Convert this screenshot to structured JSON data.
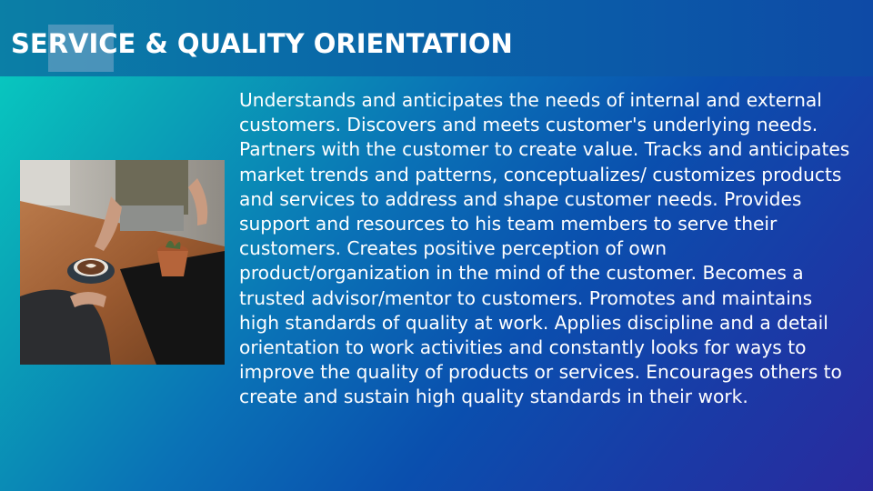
{
  "slide": {
    "title": "SERVICE & QUALITY ORIENTATION",
    "body": "Understands and anticipates the needs of internal and external customers. Discovers and meets customer's underlying needs. Partners with the customer to create value. Tracks and anticipates market trends and patterns, conceptualizes/ customizes products and services to address and shape customer needs. Provides support and resources to his team members to serve their customers. Creates positive perception of own product/organization in the mind of the customer. Becomes a trusted advisor/mentor to customers. Promotes and maintains high standards of quality at work. Applies discipline and a detail orientation to work activities and constantly looks for ways to improve the quality of products or services. Encourages others to create and sustain high quality standards in their work."
  },
  "colors": {
    "gradient_start": "#07d1c2",
    "gradient_end": "#2a2a9e",
    "title_bar": "#0a68a8",
    "text": "#ffffff"
  }
}
